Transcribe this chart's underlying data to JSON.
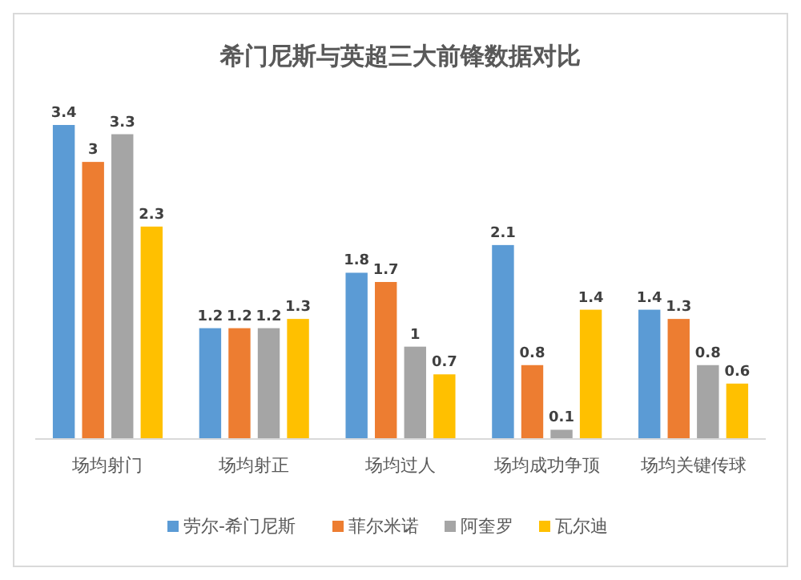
{
  "chart_data": {
    "type": "bar",
    "title": "希门尼斯与英超三大前锋数据对比",
    "categories": [
      "场均射门",
      "场均射正",
      "场均过人",
      "场均成功争顶",
      "场均关键传球"
    ],
    "series": [
      {
        "name": "劳尔-希门尼斯",
        "color": "#5b9bd5",
        "values": [
          3.4,
          1.2,
          1.8,
          2.1,
          1.4
        ]
      },
      {
        "name": "菲尔米诺",
        "color": "#ed7d31",
        "values": [
          3,
          1.2,
          1.7,
          0.8,
          1.3
        ]
      },
      {
        "name": "阿奎罗",
        "color": "#a5a5a5",
        "values": [
          3.3,
          1.2,
          1,
          0.1,
          0.8
        ]
      },
      {
        "name": "瓦尔迪",
        "color": "#ffc000",
        "values": [
          2.3,
          1.3,
          0.7,
          1.4,
          0.6
        ]
      }
    ],
    "data_labels": true,
    "legend": "bottom"
  }
}
